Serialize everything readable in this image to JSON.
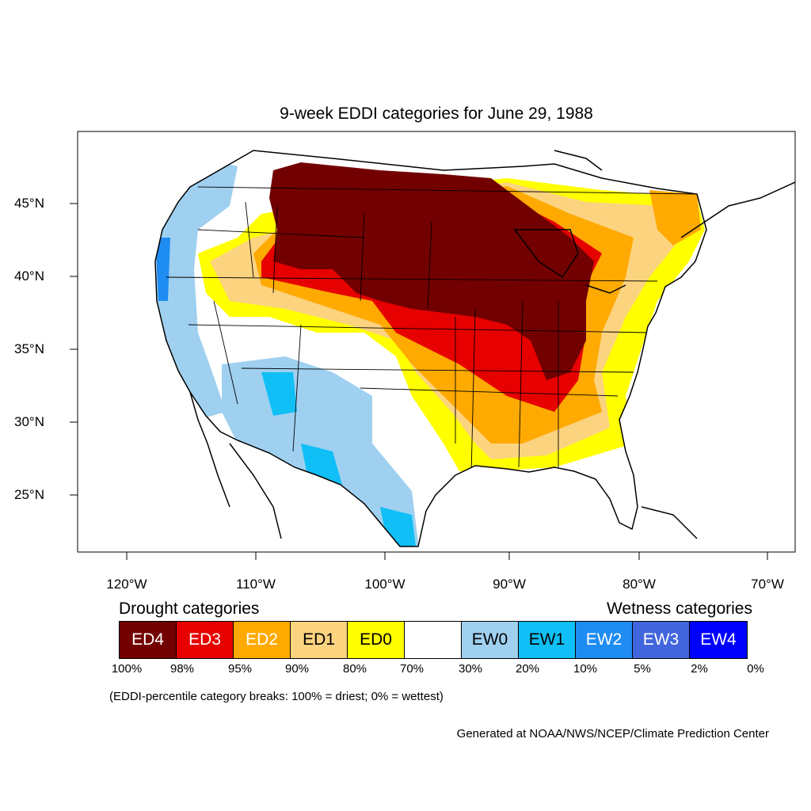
{
  "title": "9-week EDDI categories for June 29, 1988",
  "lat_labels": [
    "45°N",
    "40°N",
    "35°N",
    "30°N",
    "25°N"
  ],
  "lon_labels": [
    "120°W",
    "110°W",
    "100°W",
    "90°W",
    "80°W",
    "70°W"
  ],
  "legend": {
    "drought_heading": "Drought categories",
    "wetness_heading": "Wetness categories",
    "categories": [
      {
        "label": "ED4",
        "color": "#730000",
        "text_color": "#ffffff"
      },
      {
        "label": "ED3",
        "color": "#e60000",
        "text_color": "#ffffff"
      },
      {
        "label": "ED2",
        "color": "#ffaa00",
        "text_color": "#ffffff"
      },
      {
        "label": "ED1",
        "color": "#fcd37f",
        "text_color": "#000000"
      },
      {
        "label": "ED0",
        "color": "#ffff00",
        "text_color": "#000000"
      },
      {
        "label": "",
        "color": "#ffffff",
        "text_color": "#000000"
      },
      {
        "label": "EW0",
        "color": "#9fd0f0",
        "text_color": "#000000"
      },
      {
        "label": "EW1",
        "color": "#10bff5",
        "text_color": "#000000"
      },
      {
        "label": "EW2",
        "color": "#1e8cf2",
        "text_color": "#ffffff"
      },
      {
        "label": "EW3",
        "color": "#4165dc",
        "text_color": "#ffffff"
      },
      {
        "label": "EW4",
        "color": "#0000ff",
        "text_color": "#ffffff"
      }
    ],
    "percentiles": [
      "100%",
      "98%",
      "95%",
      "90%",
      "80%",
      "70%",
      "30%",
      "20%",
      "10%",
      "5%",
      "2%",
      "0%"
    ]
  },
  "note": "(EDDI-percentile category breaks: 100% = driest; 0% = wettest)",
  "credit": "Generated at NOAA/NWS/NCEP/Climate Prediction Center"
}
